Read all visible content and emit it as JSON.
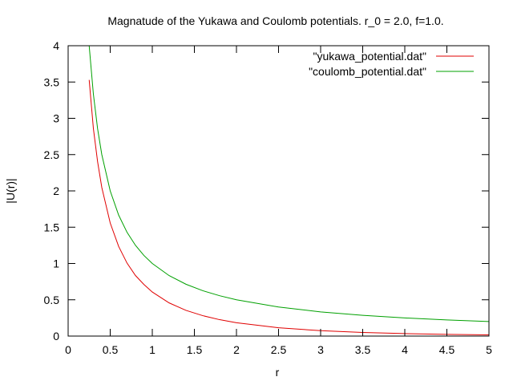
{
  "chart_data": {
    "type": "line",
    "title": "Magnatude of the Yukawa and Coulomb potentials. r_0 = 2.0, f=1.0.",
    "xlabel": "r",
    "ylabel": "|U(r)|",
    "xlim": [
      0,
      5
    ],
    "ylim": [
      0,
      4
    ],
    "x_ticks": [
      "0",
      "0.5",
      "1",
      "1.5",
      "2",
      "2.5",
      "3",
      "3.5",
      "4",
      "4.5",
      "5"
    ],
    "y_ticks": [
      "0",
      "0.5",
      "1",
      "1.5",
      "2",
      "2.5",
      "3",
      "3.5",
      "4"
    ],
    "grid": false,
    "legend_position": "top-right",
    "r0": 2.0,
    "f": 1.0,
    "x": [
      0.25,
      0.3,
      0.35,
      0.4,
      0.5,
      0.6,
      0.7,
      0.8,
      0.9,
      1.0,
      1.2,
      1.4,
      1.6,
      1.8,
      2.0,
      2.5,
      3.0,
      3.5,
      4.0,
      4.5,
      5.0
    ],
    "series": [
      {
        "name": "\"yukawa_potential.dat\"",
        "color": "#e00000",
        "values": [
          3.529,
          2.86,
          2.403,
          2.047,
          1.558,
          1.235,
          1.005,
          0.834,
          0.711,
          0.607,
          0.457,
          0.354,
          0.281,
          0.226,
          0.184,
          0.115,
          0.074,
          0.05,
          0.034,
          0.023,
          0.016
        ]
      },
      {
        "name": "\"coulomb_potential.dat\"",
        "color": "#00a000",
        "values": [
          4.0,
          3.333,
          2.857,
          2.5,
          2.0,
          1.667,
          1.429,
          1.25,
          1.111,
          1.0,
          0.833,
          0.714,
          0.625,
          0.556,
          0.5,
          0.4,
          0.333,
          0.286,
          0.25,
          0.222,
          0.2
        ]
      }
    ]
  }
}
